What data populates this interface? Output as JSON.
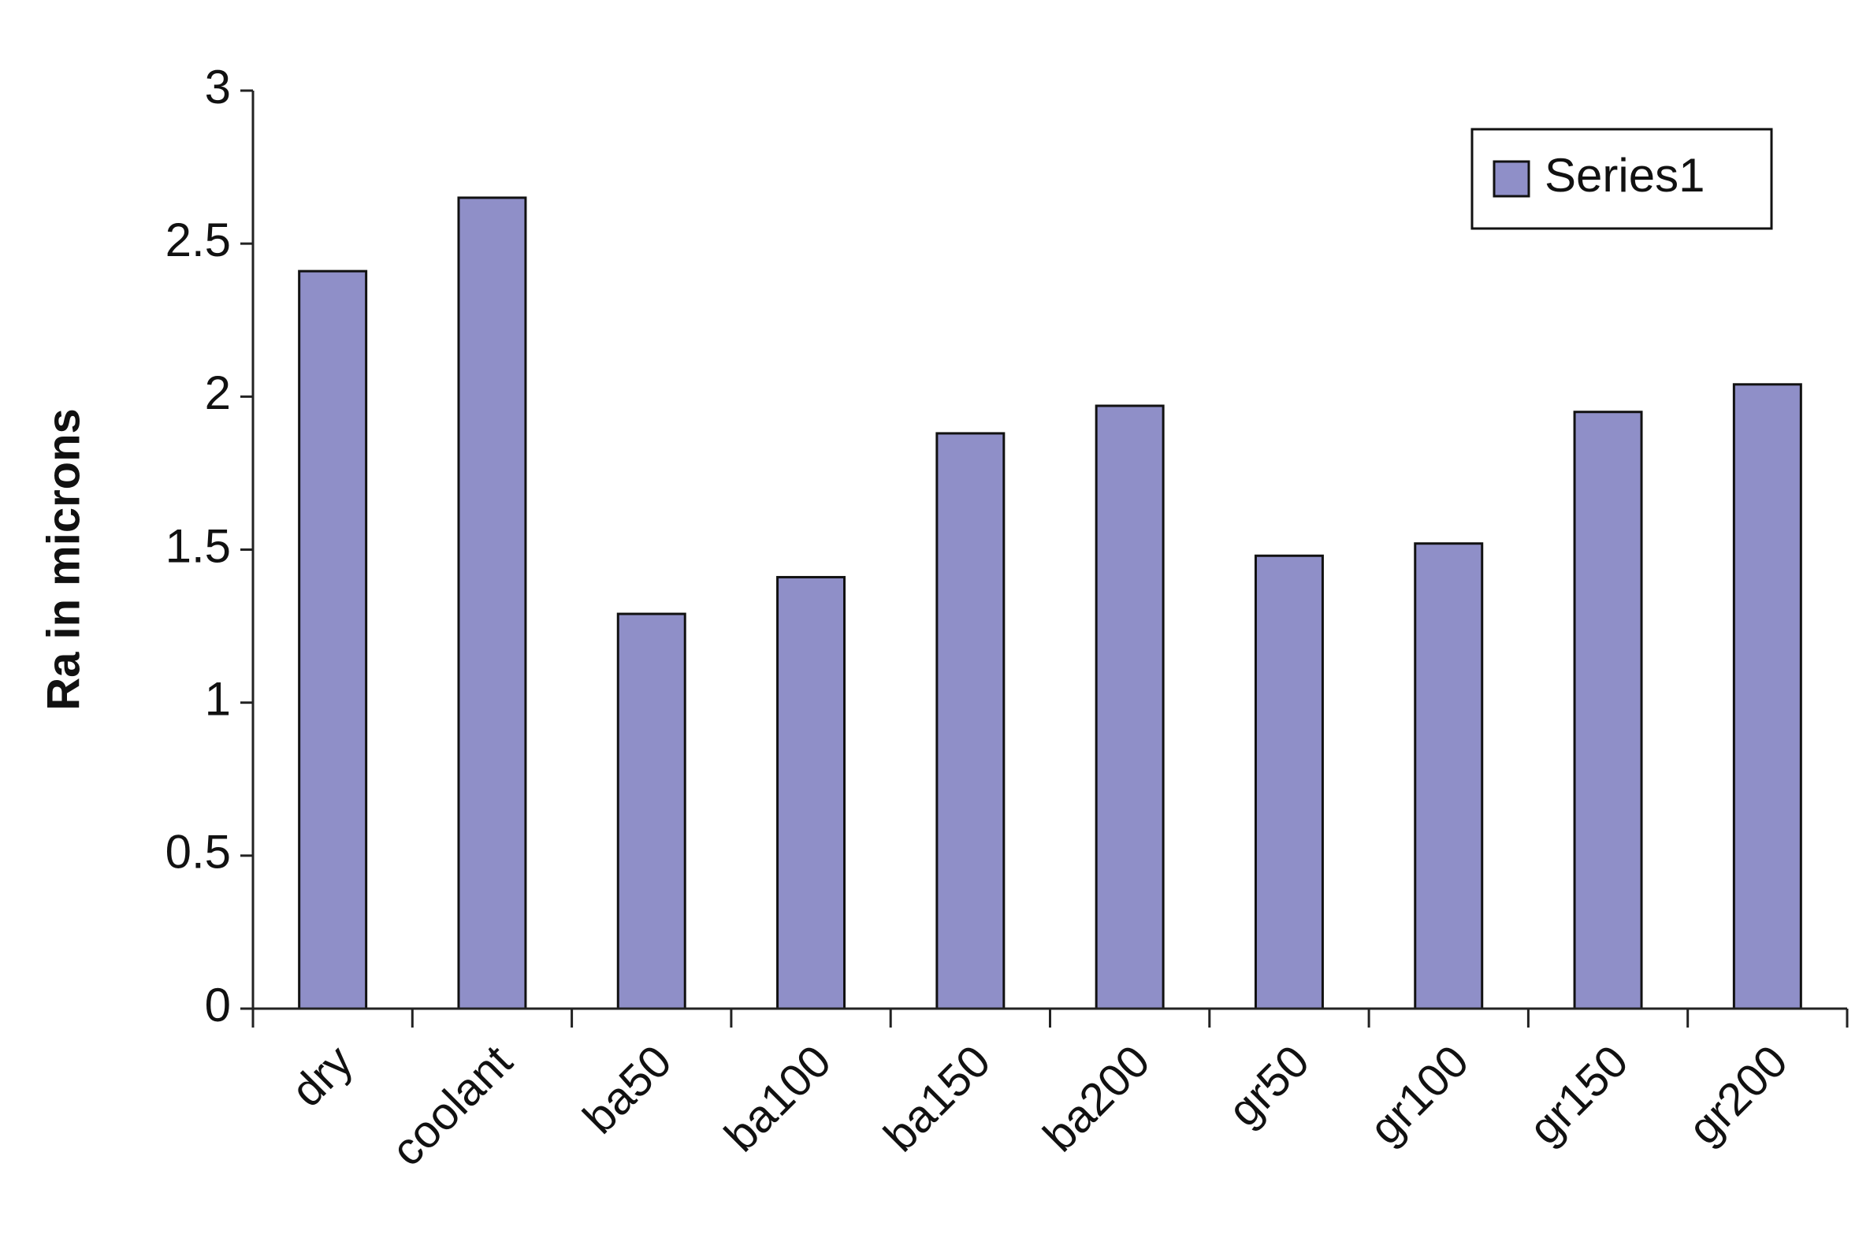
{
  "chart_data": {
    "type": "bar",
    "y_label": "Ra in microns",
    "categories": [
      "dry",
      "coolant",
      "ba50",
      "ba100",
      "ba150",
      "ba200",
      "gr50",
      "gr100",
      "gr150",
      "gr200"
    ],
    "series": [
      {
        "name": "Series1",
        "color": "#8f8fc8",
        "values": [
          2.41,
          2.65,
          1.29,
          1.41,
          1.88,
          1.97,
          1.48,
          1.52,
          1.95,
          2.04
        ]
      }
    ],
    "ylim": [
      0,
      3
    ],
    "yticks": [
      0,
      0.5,
      1,
      1.5,
      2,
      2.5,
      3
    ],
    "grid": false,
    "legend": "top-right"
  }
}
